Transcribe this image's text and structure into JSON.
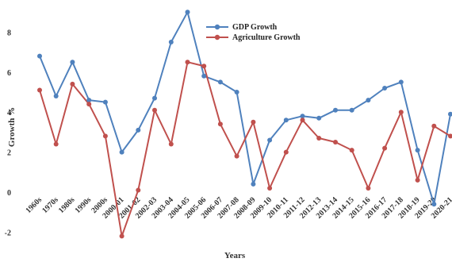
{
  "chart_data": {
    "type": "line",
    "title": "",
    "xlabel": "Years",
    "ylabel": "Growth %",
    "categories": [
      "1960s",
      "1970s",
      "1980s",
      "1990s",
      "2000s",
      "2000-01",
      "2001-02",
      "2002-03",
      "2003-04",
      "2004-05",
      "2005-06",
      "2006-07",
      "2007-08",
      "2008-09",
      "2009-10",
      "2010-11",
      "2011-12",
      "2012-13",
      "2013-14",
      "2014-15",
      "2015-16",
      "2016-17",
      "2017-18",
      "2018-19",
      "2019-20",
      "2020-21"
    ],
    "yticks": [
      "-2",
      "0",
      "2",
      "4",
      "6",
      "8"
    ],
    "ylim": [
      -2,
      9
    ],
    "grid": false,
    "legend_position": "top-center",
    "series": [
      {
        "name": "GDP Growth",
        "color": "#4F81BD",
        "values": [
          6.8,
          4.8,
          6.5,
          4.6,
          4.5,
          2.0,
          3.1,
          4.7,
          7.5,
          9.0,
          5.8,
          5.5,
          5.0,
          0.4,
          2.6,
          3.6,
          3.8,
          3.7,
          4.1,
          4.1,
          4.6,
          5.2,
          5.5,
          2.1,
          -0.6,
          3.9
        ]
      },
      {
        "name": "Agriculture Growth",
        "color": "#C0504D",
        "values": [
          5.1,
          2.4,
          5.4,
          4.4,
          2.8,
          -2.2,
          0.1,
          4.1,
          2.4,
          6.5,
          6.3,
          3.4,
          1.8,
          3.5,
          0.2,
          2.0,
          3.6,
          2.7,
          2.5,
          2.1,
          0.2,
          2.2,
          4.0,
          0.6,
          3.3,
          2.8
        ]
      }
    ]
  }
}
